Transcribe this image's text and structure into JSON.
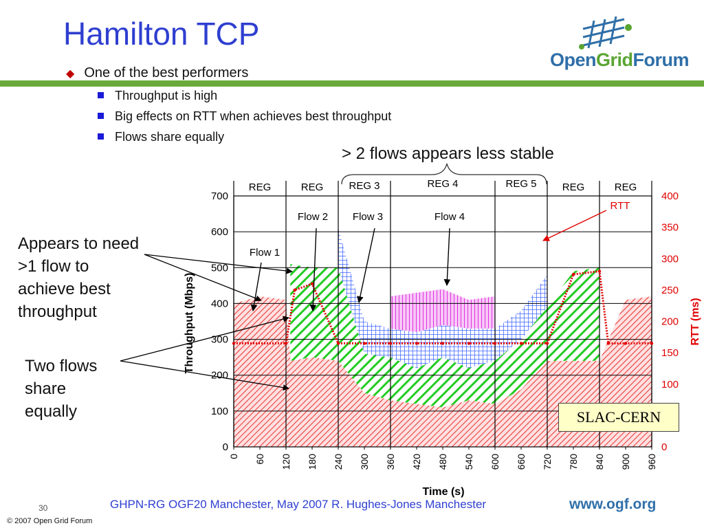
{
  "slide": {
    "title": "Hamilton TCP",
    "bullet_main": "One of the best performers",
    "bullets_sub": [
      "Throughput is high",
      "Big effects on RTT when achieves best throughput",
      "Flows share equally"
    ],
    "note_top": "> 2 flows appears less stable",
    "note_left_1": [
      "Appears to need",
      ">1 flow to",
      "achieve best",
      "throughput"
    ],
    "note_left_2": [
      "Two flows",
      "share",
      "equally"
    ],
    "slac_label": "SLAC-CERN",
    "footer": "GHPN-RG OGF20 Manchester, May 2007 R. Hughes-Jones  Manchester",
    "footer_url": "www.ogf.org",
    "page_number": "30",
    "copyright": "© 2007 Open Grid Forum",
    "logo": {
      "part1": "Open",
      "part2": "Grid",
      "part3": "Forum",
      "icon": "grid-logo-icon"
    }
  },
  "colors": {
    "title": "#2f3fd0",
    "rule": "#6aaa3a",
    "flow1": "#e83030",
    "flow2": "#22cc22",
    "flow3": "#3b63ff",
    "flow4": "#e030e0",
    "rtt": "#e00000"
  },
  "chart_data": {
    "type": "area",
    "xlabel": "Time (s)",
    "ylabel": "Throughput (Mbps)",
    "y2label": "RTT (ms)",
    "xlim": [
      0,
      960
    ],
    "ylim": [
      0,
      700
    ],
    "y2lim": [
      0,
      400
    ],
    "xticks": [
      "0",
      "60",
      "120",
      "180",
      "240",
      "300",
      "360",
      "420",
      "480",
      "540",
      "600",
      "660",
      "720",
      "780",
      "840",
      "900",
      "960"
    ],
    "yticks": [
      "0",
      "100",
      "200",
      "300",
      "400",
      "500",
      "600",
      "700"
    ],
    "y2ticks": [
      "0",
      "50",
      "100",
      "150",
      "200",
      "250",
      "300",
      "350",
      "400"
    ],
    "grid": true,
    "regions": [
      {
        "label": "REG",
        "start": 0,
        "end": 120
      },
      {
        "label": "REG",
        "start": 120,
        "end": 240
      },
      {
        "label": "REG 3",
        "start": 240,
        "end": 360
      },
      {
        "label": "REG 4",
        "start": 360,
        "end": 600
      },
      {
        "label": "REG 5",
        "start": 600,
        "end": 720
      },
      {
        "label": "REG",
        "start": 720,
        "end": 840
      },
      {
        "label": "REG",
        "start": 840,
        "end": 960
      }
    ],
    "flow_labels": [
      "Flow 1",
      "Flow 2",
      "Flow 3",
      "Flow 4"
    ],
    "rtt_label": "RTT",
    "series": [
      {
        "name": "Flow 1",
        "x": [
          0,
          60,
          120,
          130,
          180,
          240,
          300,
          360,
          420,
          480,
          540,
          600,
          660,
          720,
          780,
          840,
          900,
          960
        ],
        "values": [
          400,
          420,
          410,
          240,
          250,
          240,
          150,
          130,
          120,
          110,
          130,
          120,
          160,
          240,
          240,
          240,
          410,
          420
        ]
      },
      {
        "name": "Flow 2",
        "x": [
          130,
          180,
          240,
          300,
          360,
          420,
          480,
          540,
          600,
          660,
          720,
          780,
          840
        ],
        "values": [
          270,
          250,
          260,
          110,
          120,
          100,
          140,
          90,
          120,
          140,
          150,
          250,
          260
        ]
      },
      {
        "name": "Flow 3",
        "x": [
          240,
          300,
          360,
          420,
          480,
          540,
          600,
          660,
          720
        ],
        "values": [
          110,
          90,
          80,
          100,
          90,
          110,
          90,
          80,
          90
        ]
      },
      {
        "name": "Flow 4",
        "x": [
          360,
          420,
          480,
          540,
          600
        ],
        "values": [
          90,
          110,
          100,
          80,
          90
        ]
      },
      {
        "name": "RTT",
        "axis": "y2",
        "x": [
          0,
          120,
          140,
          180,
          240,
          300,
          360,
          420,
          480,
          540,
          600,
          660,
          720,
          780,
          840,
          860,
          900,
          960
        ],
        "values": [
          165,
          165,
          250,
          260,
          165,
          165,
          165,
          165,
          165,
          165,
          165,
          165,
          165,
          275,
          280,
          165,
          165,
          165
        ]
      }
    ]
  }
}
